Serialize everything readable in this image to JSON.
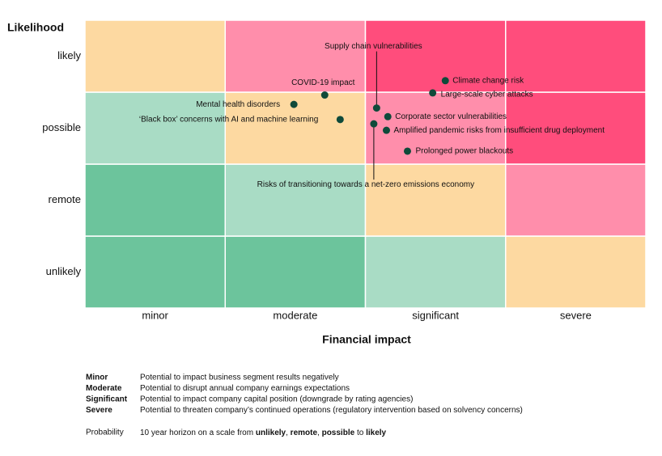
{
  "chart_data": {
    "type": "risk-matrix",
    "y_title": "Likelihood",
    "x_title": "Financial impact",
    "x_categories": [
      "minor",
      "moderate",
      "significant",
      "severe"
    ],
    "y_categories": [
      "unlikely",
      "remote",
      "possible",
      "likely"
    ],
    "xlim": [
      0,
      4
    ],
    "ylim": [
      0,
      4
    ],
    "cell_colors": [
      [
        "#6cc49c",
        "#6cc49c",
        "#a9dcc5",
        "#fdd9a1"
      ],
      [
        "#6cc49c",
        "#a9dcc5",
        "#fdd9a1",
        "#ff8eab"
      ],
      [
        "#a9dcc5",
        "#fdd9a1",
        "#ff8eab",
        "#ff4d7c"
      ],
      [
        "#fdd9a1",
        "#ff8eab",
        "#ff4d7c",
        "#ff4d7c"
      ]
    ],
    "point_color": "#0f4a3a",
    "points": [
      {
        "label": "COVID-19 impact",
        "x": 1.71,
        "y": 2.96
      },
      {
        "label": "Mental health disorders",
        "x": 1.49,
        "y": 2.83
      },
      {
        "label": "‘Black box’ concerns with AI and machine learning",
        "x": 1.82,
        "y": 2.62
      },
      {
        "label": "Supply chain vulnerabilities",
        "x": 2.08,
        "y": 2.78
      },
      {
        "label": "Climate change risk",
        "x": 2.57,
        "y": 3.16
      },
      {
        "label": "Large-scale cyber attacks",
        "x": 2.48,
        "y": 2.99
      },
      {
        "label": "Corporate sector vulnerabilities",
        "x": 2.16,
        "y": 2.66
      },
      {
        "label": "Amplified pandemic risks from insufficient drug deployment",
        "x": 2.15,
        "y": 2.47
      },
      {
        "label": "Prolonged power blackouts",
        "x": 2.3,
        "y": 2.18
      },
      {
        "label": "Risks of transitioning towards a net-zero emissions economy",
        "x": 2.06,
        "y": 2.56
      }
    ],
    "definitions": [
      {
        "term": "Minor",
        "text": "Potential to impact business segment results negatively"
      },
      {
        "term": "Moderate",
        "text": "Potential to disrupt annual company earnings expectations"
      },
      {
        "term": "Significant",
        "text": "Potential to impact company capital position (downgrade by rating agencies)"
      },
      {
        "term": "Severe",
        "text": "Potential to threaten company’s continued operations (regulatory intervention based on solvency concerns)"
      }
    ],
    "probability": {
      "term": "Probability",
      "parts": [
        {
          "text": "10 year horizon on a scale from ",
          "bold": false
        },
        {
          "text": "unlikely",
          "bold": true
        },
        {
          "text": ", ",
          "bold": false
        },
        {
          "text": "remote",
          "bold": true
        },
        {
          "text": ", ",
          "bold": false
        },
        {
          "text": "possible",
          "bold": true
        },
        {
          "text": " to ",
          "bold": false
        },
        {
          "text": "likely",
          "bold": true
        }
      ]
    }
  }
}
